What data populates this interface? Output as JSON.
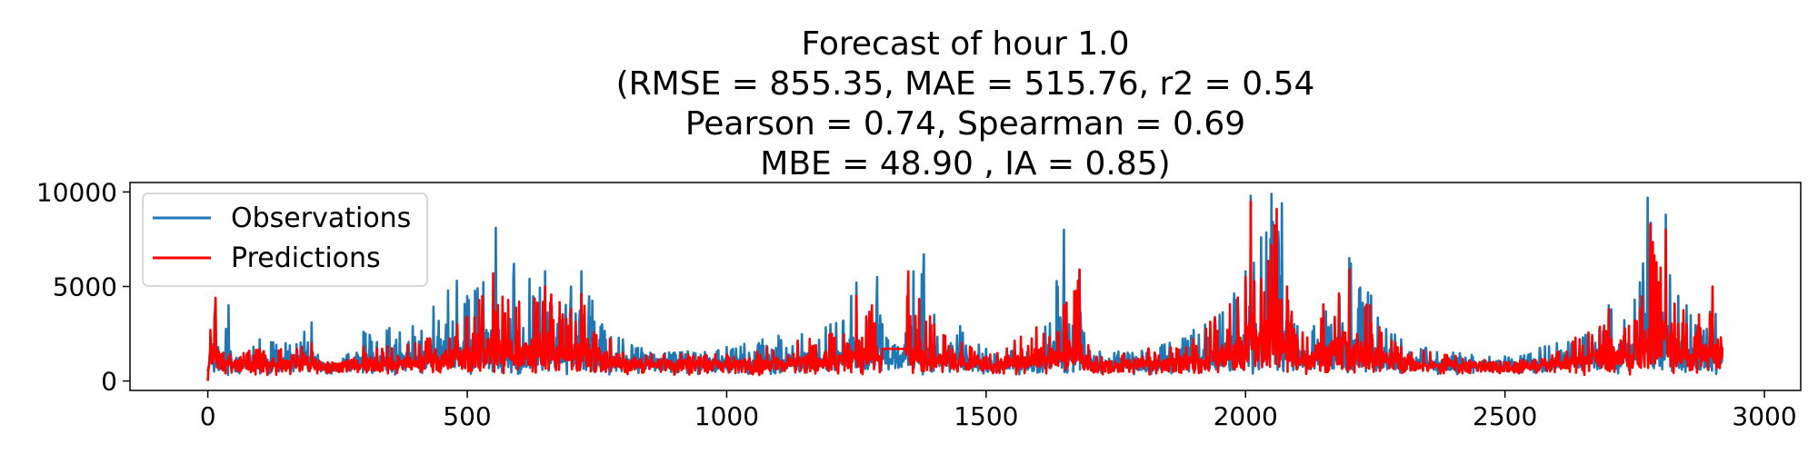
{
  "chart_data": {
    "type": "line",
    "title_lines": [
      "Forecast of hour 1.0",
      "(RMSE = 855.35, MAE = 515.76, r2 = 0.54",
      "Pearson = 0.74, Spearman = 0.69",
      "MBE = 48.90 , IA = 0.85)"
    ],
    "xlabel": "",
    "ylabel": "",
    "xlim": [
      -150,
      3070
    ],
    "ylim": [
      -500,
      10500
    ],
    "x_ticks": [
      0,
      500,
      1000,
      1500,
      2000,
      2500,
      3000
    ],
    "y_ticks": [
      0,
      5000,
      10000
    ],
    "legend": {
      "position": "top-left",
      "entries": [
        "Observations",
        "Predictions"
      ]
    },
    "grid": false,
    "n_points": 2920,
    "series": [
      {
        "name": "Observations",
        "color": "#1f77b4",
        "key_points": [
          [
            0,
            500
          ],
          [
            6,
            2300
          ],
          [
            20,
            1800
          ],
          [
            40,
            4000
          ],
          [
            60,
            1200
          ],
          [
            100,
            2200
          ],
          [
            150,
            2000
          ],
          [
            200,
            3100
          ],
          [
            230,
            400
          ],
          [
            300,
            2600
          ],
          [
            350,
            2800
          ],
          [
            395,
            2900
          ],
          [
            480,
            5300
          ],
          [
            500,
            4500
          ],
          [
            520,
            4900
          ],
          [
            555,
            8100
          ],
          [
            570,
            3500
          ],
          [
            590,
            6200
          ],
          [
            600,
            2000
          ],
          [
            620,
            5400
          ],
          [
            650,
            5800
          ],
          [
            680,
            3200
          ],
          [
            700,
            5000
          ],
          [
            720,
            5800
          ],
          [
            760,
            3000
          ],
          [
            800,
            2200
          ],
          [
            900,
            1500
          ],
          [
            1000,
            1800
          ],
          [
            1100,
            2400
          ],
          [
            1200,
            3000
          ],
          [
            1240,
            4500
          ],
          [
            1250,
            5200
          ],
          [
            1270,
            3200
          ],
          [
            1290,
            5500
          ],
          [
            1300,
            3000
          ],
          [
            1330,
            1800
          ],
          [
            1360,
            5800
          ],
          [
            1380,
            6700
          ],
          [
            1400,
            3500
          ],
          [
            1450,
            2900
          ],
          [
            1500,
            1700
          ],
          [
            1550,
            1600
          ],
          [
            1600,
            1500
          ],
          [
            1650,
            8000
          ],
          [
            1660,
            3000
          ],
          [
            1680,
            5800
          ],
          [
            1700,
            1600
          ],
          [
            1800,
            1600
          ],
          [
            1900,
            2700
          ],
          [
            1950,
            3500
          ],
          [
            2000,
            5800
          ],
          [
            2010,
            9800
          ],
          [
            2030,
            7600
          ],
          [
            2050,
            9900
          ],
          [
            2060,
            7400
          ],
          [
            2070,
            9400
          ],
          [
            2100,
            2900
          ],
          [
            2150,
            3800
          ],
          [
            2200,
            6500
          ],
          [
            2300,
            2200
          ],
          [
            2400,
            1500
          ],
          [
            2500,
            1300
          ],
          [
            2600,
            2000
          ],
          [
            2650,
            2300
          ],
          [
            2700,
            4000
          ],
          [
            2750,
            4300
          ],
          [
            2775,
            9700
          ],
          [
            2800,
            4500
          ],
          [
            2810,
            8800
          ],
          [
            2850,
            4000
          ],
          [
            2870,
            2800
          ],
          [
            2900,
            4300
          ],
          [
            2920,
            1800
          ]
        ]
      },
      {
        "name": "Predictions",
        "color": "#ff0000",
        "key_points": [
          [
            0,
            0
          ],
          [
            5,
            2700
          ],
          [
            15,
            4400
          ],
          [
            30,
            1500
          ],
          [
            100,
            1700
          ],
          [
            200,
            2000
          ],
          [
            230,
            500
          ],
          [
            300,
            1800
          ],
          [
            400,
            2000
          ],
          [
            500,
            3400
          ],
          [
            550,
            5700
          ],
          [
            600,
            4200
          ],
          [
            650,
            5000
          ],
          [
            700,
            3800
          ],
          [
            720,
            4600
          ],
          [
            800,
            1500
          ],
          [
            1000,
            1400
          ],
          [
            1200,
            2500
          ],
          [
            1250,
            4500
          ],
          [
            1280,
            4000
          ],
          [
            1300,
            1700
          ],
          [
            1320,
            1700
          ],
          [
            1340,
            1700
          ],
          [
            1350,
            5800
          ],
          [
            1400,
            3000
          ],
          [
            1500,
            1300
          ],
          [
            1650,
            4000
          ],
          [
            1680,
            5900
          ],
          [
            1700,
            1300
          ],
          [
            1900,
            2200
          ],
          [
            2000,
            5500
          ],
          [
            2010,
            9500
          ],
          [
            2030,
            5400
          ],
          [
            2050,
            7200
          ],
          [
            2060,
            9100
          ],
          [
            2080,
            5000
          ],
          [
            2100,
            2200
          ],
          [
            2200,
            5900
          ],
          [
            2300,
            1800
          ],
          [
            2500,
            1000
          ],
          [
            2600,
            1500
          ],
          [
            2700,
            3800
          ],
          [
            2750,
            3200
          ],
          [
            2780,
            8300
          ],
          [
            2800,
            6000
          ],
          [
            2810,
            8000
          ],
          [
            2850,
            3000
          ],
          [
            2900,
            5000
          ],
          [
            2920,
            1700
          ]
        ]
      }
    ]
  }
}
